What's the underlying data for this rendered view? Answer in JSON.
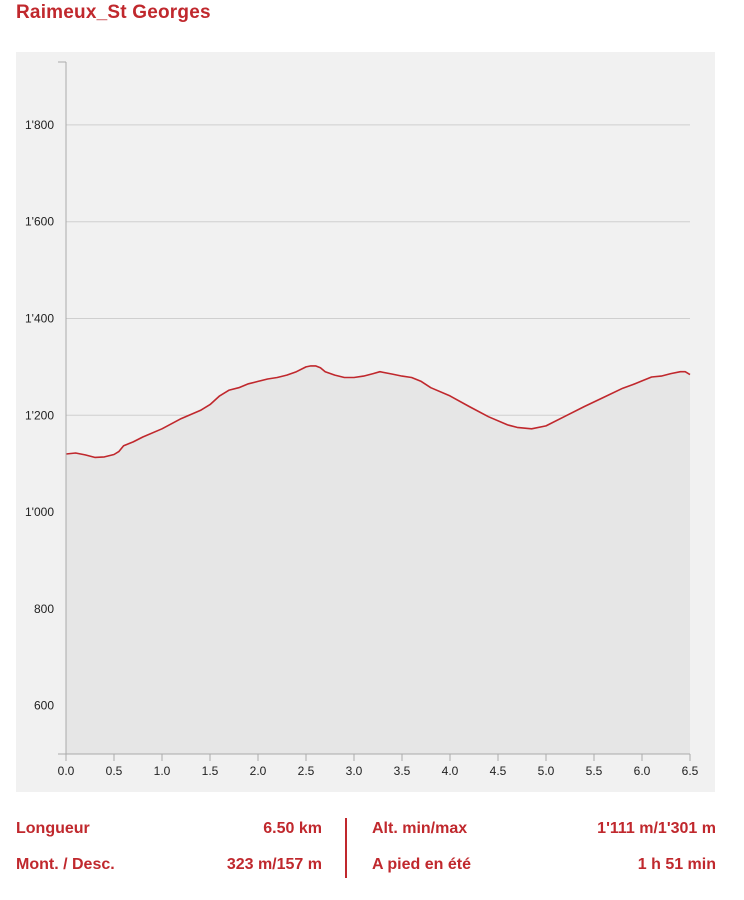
{
  "title": "Raimeux_St Georges",
  "colors": {
    "accent": "#c0282d",
    "panel": "#f1f1f1",
    "fill": "#e6e6e6",
    "line": "#c0282d"
  },
  "chart_data": {
    "type": "area",
    "xlabel": "",
    "ylabel": "",
    "xlim": [
      0,
      6.5
    ],
    "ylim": [
      500,
      1930
    ],
    "x_ticks": [
      "0.0",
      "0.5",
      "1.0",
      "1.5",
      "2.0",
      "2.5",
      "3.0",
      "3.5",
      "4.0",
      "4.5",
      "5.0",
      "5.5",
      "6.0",
      "6.5"
    ],
    "y_ticks": [
      {
        "value": 600,
        "label": "600"
      },
      {
        "value": 800,
        "label": "800"
      },
      {
        "value": 1000,
        "label": "1'000"
      },
      {
        "value": 1200,
        "label": "1'200"
      },
      {
        "value": 1400,
        "label": "1'400"
      },
      {
        "value": 1600,
        "label": "1'600"
      },
      {
        "value": 1800,
        "label": "1'800"
      }
    ],
    "grid": true,
    "series": [
      {
        "x": [
          0.0,
          0.1,
          0.2,
          0.3,
          0.4,
          0.5,
          0.55,
          0.6,
          0.7,
          0.8,
          1.0,
          1.2,
          1.4,
          1.5,
          1.6,
          1.7,
          1.8,
          1.9,
          2.0,
          2.1,
          2.2,
          2.3,
          2.4,
          2.5,
          2.55,
          2.6,
          2.65,
          2.7,
          2.8,
          2.9,
          3.0,
          3.1,
          3.2,
          3.27,
          3.4,
          3.5,
          3.6,
          3.7,
          3.8,
          4.0,
          4.2,
          4.4,
          4.6,
          4.7,
          4.85,
          5.0,
          5.2,
          5.4,
          5.6,
          5.8,
          5.9,
          6.0,
          6.1,
          6.2,
          6.3,
          6.4,
          6.45,
          6.5
        ],
        "y": [
          1120,
          1122,
          1118,
          1113,
          1114,
          1119,
          1125,
          1137,
          1145,
          1155,
          1172,
          1193,
          1210,
          1222,
          1240,
          1252,
          1257,
          1265,
          1270,
          1275,
          1278,
          1283,
          1290,
          1300,
          1302,
          1302,
          1298,
          1290,
          1283,
          1278,
          1278,
          1281,
          1286,
          1290,
          1285,
          1281,
          1278,
          1270,
          1257,
          1240,
          1218,
          1197,
          1180,
          1175,
          1172,
          1178,
          1198,
          1218,
          1237,
          1256,
          1263,
          1271,
          1279,
          1281,
          1286,
          1290,
          1290,
          1284
        ]
      }
    ]
  },
  "stats": {
    "length_label": "Longueur",
    "length_value": "6.50 km",
    "updown_label": "Mont. / Desc.",
    "updown_value": "323 m/157 m",
    "alt_label": "Alt. min/max",
    "alt_value": "1'111 m/1'301 m",
    "walk_label": "A pied en été",
    "walk_value": "1 h 51 min"
  }
}
